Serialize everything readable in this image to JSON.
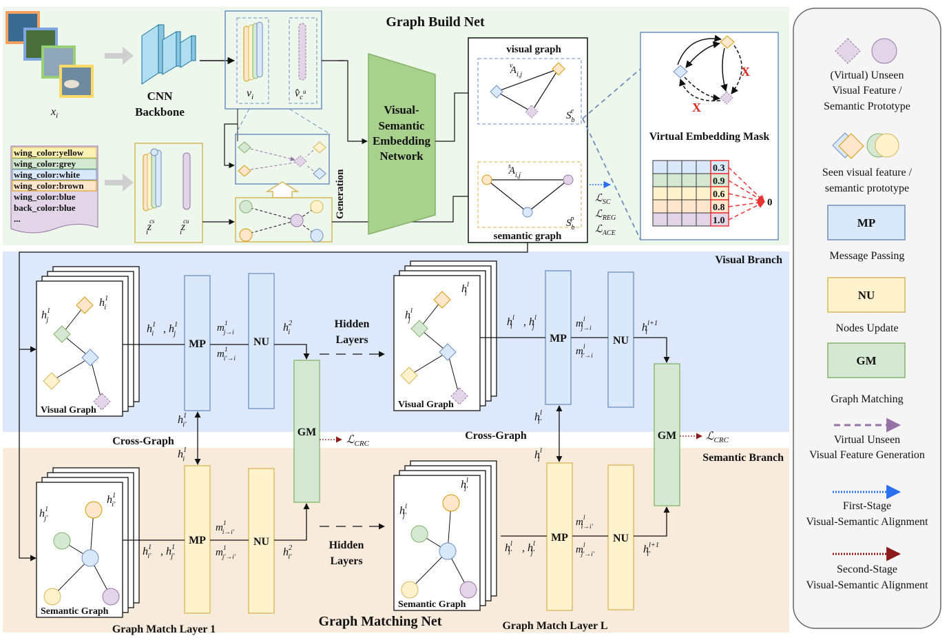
{
  "build": {
    "title": "Graph Build Net",
    "cnn": [
      "CNN",
      "Backbone"
    ],
    "input_label": "x",
    "input_sub": "i",
    "vi_label": "v",
    "vi_sub": "i",
    "vhat_label": "v̂",
    "vhat_sub": "c",
    "vhat_sup": "u",
    "attributes": [
      "wing_color:yellow",
      "wing_color:grey",
      "wing_color:white",
      "wing_color:brown",
      "wing_color:blue",
      "back_color:blue",
      "..."
    ],
    "attr_colors": [
      "#fdf2b3",
      "#d5e8d4",
      "#dae8fc",
      "#ffe6cc",
      "#e1d5e7",
      "#e1d5e7",
      "#e1d5e7"
    ],
    "zs_label": "z",
    "zs_sub": "i",
    "zs_sup": "cs",
    "zu_label": "z",
    "zu_sub": "i",
    "zu_sup": "cu",
    "generation": "Generation",
    "vsen": [
      "Visual-",
      "Semantic",
      "Embedding",
      "Network"
    ],
    "visual_graph": "visual graph",
    "semantic_graph": "semantic graph",
    "a_v": "A",
    "a_v_sup": "v",
    "a_v_sub": "i,j",
    "a_s": "A",
    "a_s_sup": "s",
    "a_s_sub": "i,j",
    "s_e": "S",
    "s_e_sup": "e",
    "s_e_sub": "b",
    "s_p": "S",
    "s_p_sup": "p",
    "s_p_sub": "b",
    "losses": [
      {
        "main": "ℒ",
        "sub": "SC"
      },
      {
        "main": "ℒ",
        "sub": "REG"
      },
      {
        "main": "ℒ",
        "sub": "ACE"
      }
    ],
    "mask_title": "Virtual Embedding Mask",
    "mask_values": [
      "0.3",
      "0.9",
      "0.6",
      "0.8",
      "1.0"
    ],
    "mask_row_colors": [
      "#dae8fc",
      "#d5e8d4",
      "#fff2cc",
      "#ffe6cc",
      "#e1d5e7"
    ],
    "mask_zero": "0",
    "mask_x": "X"
  },
  "match": {
    "visual_branch": "Visual Branch",
    "semantic_branch": "Semantic Branch",
    "title": "Graph Matching Net",
    "layer1": "Graph Match Layer 1",
    "layerL": "Graph Match Layer  L",
    "visual_graph_label": "Visual Graph",
    "semantic_graph_label": "Semantic Graph",
    "mp": "MP",
    "nu": "NU",
    "gm": "GM",
    "hidden_layers": [
      "Hidden",
      "Layers"
    ],
    "cross_graph": "Cross-Graph",
    "crc": "ℒ",
    "crc_sub": "CRC"
  },
  "legend": {
    "items": [
      {
        "lines": [
          "(Virtual) Unseen",
          "Visual Feature /",
          "Semantic Prototype"
        ]
      },
      {
        "lines": [
          "Seen visual feature /",
          "semantic prototype"
        ]
      },
      {
        "box": "MP",
        "lines": [
          "Message Passing"
        ]
      },
      {
        "box": "NU",
        "lines": [
          "Nodes Update"
        ]
      },
      {
        "box": "GM",
        "lines": [
          "Graph Matching"
        ]
      },
      {
        "lines": [
          "Virtual Unseen",
          "Visual Feature Generation"
        ]
      },
      {
        "lines": [
          "First-Stage",
          "Visual-Semantic Alignment"
        ]
      },
      {
        "lines": [
          "Second-Stage",
          "Visual-Semantic Alignment"
        ]
      }
    ]
  },
  "colors": {
    "build_bg": "#eef7ec",
    "visual_bg": "#dde8fb",
    "semantic_bg": "#f8ebdc",
    "mp_fill": "#dae8fc",
    "mp_stroke": "#6c8ebf",
    "nu_fill": "#fff2cc",
    "nu_stroke": "#d6b656",
    "gm_fill": "#d5e8d4",
    "gm_stroke": "#82b366",
    "purple": "#e1d5e7",
    "purple_stroke": "#9673a6",
    "orange": "#ffe6cc",
    "orange_stroke": "#d79b00"
  }
}
